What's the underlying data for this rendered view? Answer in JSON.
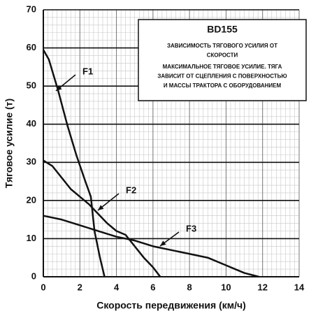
{
  "chart_data": {
    "type": "line",
    "x_label": "Скорость передвижения (км/ч)",
    "y_label": "Тяговое усилие (т)",
    "box_title": "BD155",
    "box_text": [
      "ЗАВИСИМОСТЬ ТЯГОВОГО УСИЛИЯ ОТ",
      "СКОРОСТИ",
      "МАКСИМАЛЬНОЕ ТЯГОВОЕ УСИЛИЕ. ТЯГА",
      "ЗАВИСИТ ОТ СЦЕПЛЕНИЯ С ПОВЕРХНОСТЬЮ",
      "И МАССЫ ТРАКТОРА С ОБОРУДОВАНИЕМ"
    ],
    "xlim": [
      0,
      14
    ],
    "xticks": [
      0,
      2,
      4,
      6,
      8,
      10,
      12,
      14
    ],
    "ylim": [
      0,
      70
    ],
    "yticks": [
      0,
      10,
      20,
      30,
      40,
      50,
      60,
      70
    ],
    "grid": true,
    "series": [
      {
        "name": "F1",
        "color": "#111111",
        "x": [
          0,
          0.3,
          0.8,
          1.3,
          1.8,
          2.3,
          2.6,
          2.8,
          3.1,
          3.35
        ],
        "values": [
          59.5,
          57,
          49,
          40,
          32,
          25,
          21,
          12,
          5,
          0
        ]
      },
      {
        "name": "F2",
        "color": "#111111",
        "x": [
          0,
          0.5,
          1,
          1.5,
          2,
          2.5,
          3,
          3.5,
          4,
          4.5,
          5,
          5.5,
          6,
          6.4
        ],
        "values": [
          30.5,
          29,
          26,
          23,
          21,
          19,
          16.5,
          14,
          12,
          11,
          8,
          5,
          2.5,
          0
        ]
      },
      {
        "name": "F3",
        "color": "#111111",
        "x": [
          0,
          1,
          2,
          3,
          4,
          5,
          6,
          7,
          8,
          9,
          10,
          11,
          11.8
        ],
        "values": [
          16,
          15,
          13.5,
          12,
          10.5,
          9.5,
          8,
          7,
          6,
          5,
          3,
          1,
          0
        ]
      }
    ]
  }
}
